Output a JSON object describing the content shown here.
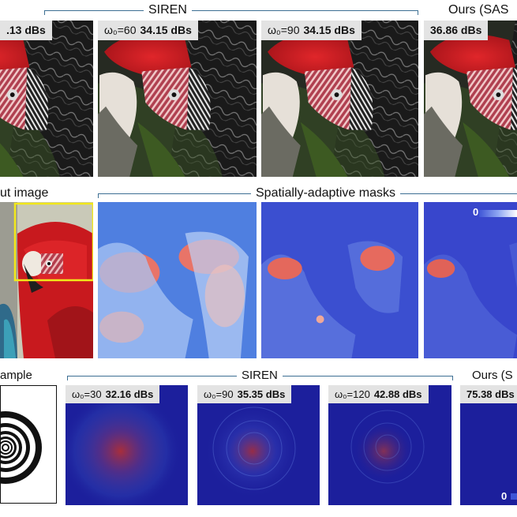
{
  "row1": {
    "group_title": "SIREN",
    "ours_title": "Ours (SAS",
    "panels": [
      {
        "omega": "",
        "psnr": ".13 dBs"
      },
      {
        "omega": "ω₀=60",
        "psnr": "34.15 dBs"
      },
      {
        "omega": "ω₀=90",
        "psnr": "34.15 dBs"
      },
      {
        "omega": "",
        "psnr": "36.86 dBs"
      }
    ]
  },
  "row2": {
    "input_title": "ut image",
    "masks_title": "Spatially-adaptive masks",
    "colorbar_label": "0"
  },
  "row3": {
    "example_title": "ample",
    "group_title": "SIREN",
    "ours_title": "Ours (S",
    "panels": [
      {
        "omega": "ω₀=30",
        "psnr": "32.16 dBs"
      },
      {
        "omega": "ω₀=90",
        "psnr": "35.35 dBs"
      },
      {
        "omega": "ω₀=120",
        "psnr": "42.88 dBs"
      },
      {
        "omega": "",
        "psnr": "75.38 dBs"
      }
    ],
    "colorbar_label": "0"
  },
  "colors": {
    "bracket": "#3d6f93",
    "label_bg": "#e3e3e3",
    "spectrum_bg": "#1c1f9c",
    "parrot_red": "#cf1d22"
  }
}
